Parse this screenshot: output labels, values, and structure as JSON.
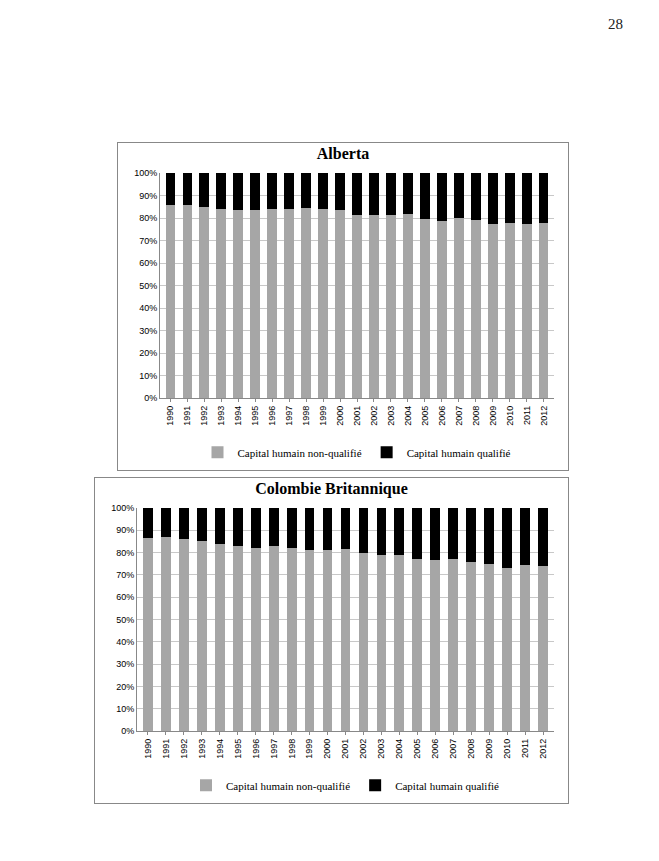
{
  "page": {
    "number": "28"
  },
  "chart_data": [
    {
      "type": "bar",
      "title": "Alberta",
      "stacked": true,
      "grid": true,
      "legend": "bottom",
      "categories": [
        "1990",
        "1991",
        "1992",
        "1993",
        "1994",
        "1995",
        "1996",
        "1997",
        "1998",
        "1999",
        "2000",
        "2001",
        "2002",
        "2003",
        "2004",
        "2005",
        "2006",
        "2007",
        "2008",
        "2009",
        "2010",
        "2011",
        "2012"
      ],
      "series": [
        {
          "name": "Capital humain non-qualifié",
          "color": "#a6a6a6",
          "values": [
            86,
            86,
            85,
            84,
            83.5,
            83.5,
            84,
            84,
            84.5,
            84,
            83.5,
            81.5,
            81.5,
            81.5,
            82,
            79.5,
            78.5,
            80,
            79,
            77.5,
            78,
            77.5,
            78
          ]
        },
        {
          "name": "Capital humain qualifié",
          "color": "#000000",
          "values": [
            14,
            14,
            15,
            16,
            16.5,
            16.5,
            16,
            16,
            15.5,
            16,
            16.5,
            18.5,
            18.5,
            18.5,
            18,
            20.5,
            21.5,
            20,
            21,
            22.5,
            22,
            22.5,
            22
          ]
        }
      ],
      "ylim": [
        0,
        100
      ],
      "yticks": [
        {
          "value": 0,
          "label": "0%"
        },
        {
          "value": 10,
          "label": "10%"
        },
        {
          "value": 20,
          "label": "20%"
        },
        {
          "value": 30,
          "label": "30%"
        },
        {
          "value": 40,
          "label": "40%"
        },
        {
          "value": 50,
          "label": "50%"
        },
        {
          "value": 60,
          "label": "60%"
        },
        {
          "value": 70,
          "label": "70%"
        },
        {
          "value": 80,
          "label": "80%"
        },
        {
          "value": 90,
          "label": "90%"
        },
        {
          "value": 100,
          "label": "100%"
        }
      ]
    },
    {
      "type": "bar",
      "title": "Colombie Britannique",
      "stacked": true,
      "grid": true,
      "legend": "bottom",
      "categories": [
        "1990",
        "1991",
        "1992",
        "1993",
        "1994",
        "1995",
        "1996",
        "1997",
        "1998",
        "1999",
        "2000",
        "2001",
        "2002",
        "2003",
        "2004",
        "2005",
        "2006",
        "2007",
        "2008",
        "2009",
        "2010",
        "2011",
        "2012"
      ],
      "series": [
        {
          "name": "Capital humain non-qualifié",
          "color": "#a6a6a6",
          "values": [
            86.5,
            87,
            86,
            85,
            84,
            83,
            82,
            83,
            82,
            81,
            81,
            81.5,
            80,
            79,
            79,
            77,
            76.5,
            77,
            76,
            75,
            73,
            74.5,
            74
          ]
        },
        {
          "name": "Capital humain qualifié",
          "color": "#000000",
          "values": [
            13.5,
            13,
            14,
            15,
            16,
            17,
            18,
            17,
            18,
            19,
            19,
            18.5,
            20,
            21,
            21,
            23,
            23.5,
            23,
            24,
            25,
            27,
            25.5,
            26
          ]
        }
      ],
      "ylim": [
        0,
        100
      ],
      "yticks": [
        {
          "value": 0,
          "label": "0%"
        },
        {
          "value": 10,
          "label": "10%"
        },
        {
          "value": 20,
          "label": "20%"
        },
        {
          "value": 30,
          "label": "30%"
        },
        {
          "value": 40,
          "label": "40%"
        },
        {
          "value": 50,
          "label": "50%"
        },
        {
          "value": 60,
          "label": "60%"
        },
        {
          "value": 70,
          "label": "70%"
        },
        {
          "value": 80,
          "label": "80%"
        },
        {
          "value": 90,
          "label": "90%"
        },
        {
          "value": 100,
          "label": "100%"
        }
      ]
    }
  ]
}
